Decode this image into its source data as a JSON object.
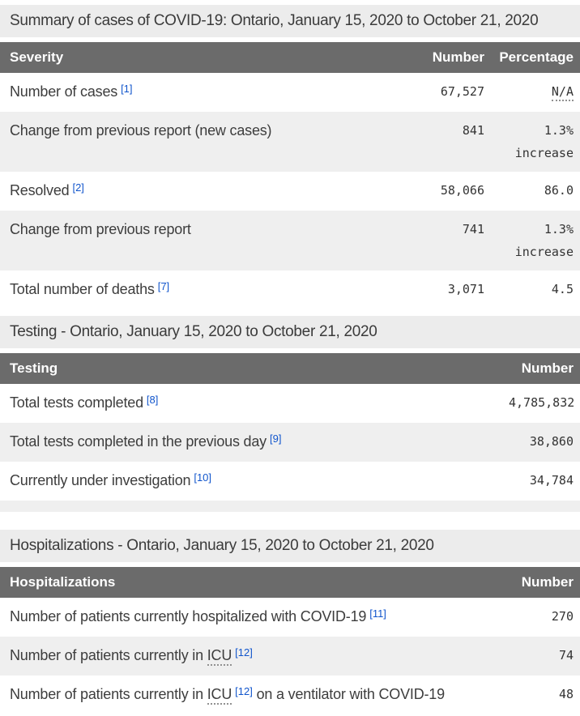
{
  "colors": {
    "table_header_bg": "#6b6b6b",
    "section_title_bg": "#ececec",
    "zebra_stripe_bg": "#efefef",
    "footnote_link": "#1155cc",
    "body_text": "#3d3d3d"
  },
  "severity": {
    "title": "Summary of cases of COVID-19: Ontario, January 15, 2020 to October 21, 2020",
    "columns": {
      "label": "Severity",
      "number": "Number",
      "percentage": "Percentage"
    },
    "rows": [
      {
        "label": "Number of cases",
        "ref": "[1]",
        "number": "67,527",
        "pct": "N/A"
      },
      {
        "label": "Change from previous report (new cases)",
        "number": "841",
        "pct": "1.3%\nincrease"
      },
      {
        "label": "Resolved",
        "ref": "[2]",
        "number": "58,066",
        "pct": "86.0"
      },
      {
        "label": "Change from previous report",
        "number": "741",
        "pct": "1.3%\nincrease"
      },
      {
        "label": "Total number of deaths",
        "ref": "[7]",
        "number": "3,071",
        "pct": "4.5"
      }
    ]
  },
  "testing": {
    "title": "Testing - Ontario, January 15, 2020 to October 21, 2020",
    "columns": {
      "label": "Testing",
      "number": "Number"
    },
    "rows": [
      {
        "label": "Total tests completed",
        "ref": "[8]",
        "number": "4,785,832"
      },
      {
        "label": "Total tests completed in the previous day",
        "ref": "[9]",
        "number": "38,860"
      },
      {
        "label": "Currently under investigation",
        "ref": "[10]",
        "number": "34,784"
      }
    ]
  },
  "hospitalizations": {
    "title": "Hospitalizations - Ontario, January 15, 2020 to October 21, 2020",
    "columns": {
      "label": "Hospitalizations",
      "number": "Number"
    },
    "rows": [
      {
        "label": "Number of patients currently hospitalized with COVID-19",
        "ref": "[11]",
        "number": "270"
      },
      {
        "label_prefix": "Number of patients currently in ",
        "abbr": "ICU",
        "ref": "[12]",
        "number": "74"
      },
      {
        "label_prefix": "Number of patients currently in ",
        "abbr": "ICU",
        "ref": "[12]",
        "label_suffix": " on a ventilator with COVID-19",
        "number": "48"
      }
    ]
  }
}
